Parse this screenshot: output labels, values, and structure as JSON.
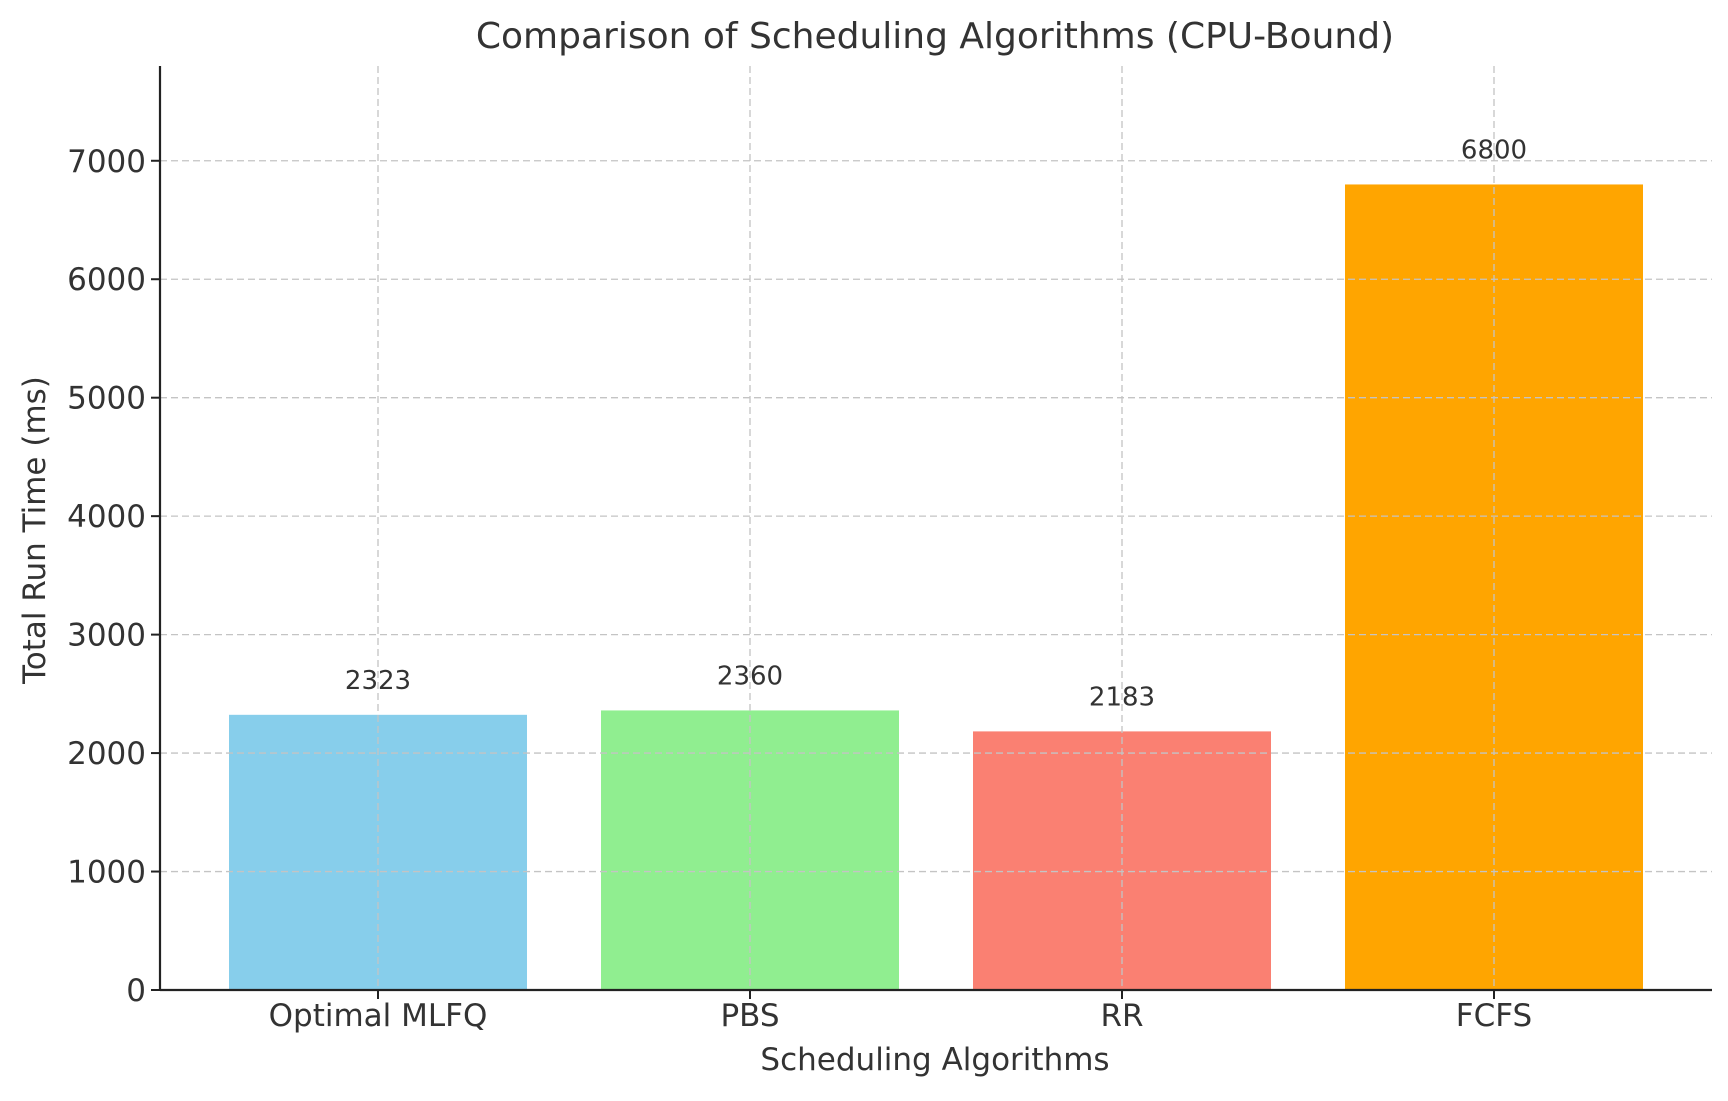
{
  "chart_data": {
    "type": "bar",
    "title": "Comparison of Scheduling Algorithms (CPU-Bound)",
    "xlabel": "Scheduling Algorithms",
    "ylabel": "Total Run Time (ms)",
    "categories": [
      "Optimal MLFQ",
      "PBS",
      "RR",
      "FCFS"
    ],
    "values": [
      2323,
      2360,
      2183,
      6800
    ],
    "value_labels": [
      "2323",
      "2360",
      "2183",
      "6800"
    ],
    "colors": [
      "#87CEEB",
      "#90EE90",
      "#FA8072",
      "#FFA500"
    ],
    "ylim": [
      0,
      7800
    ],
    "yticks": [
      0,
      1000,
      2000,
      3000,
      4000,
      5000,
      6000,
      7000
    ],
    "ytick_labels": [
      "0",
      "1000",
      "2000",
      "3000",
      "4000",
      "5000",
      "6000",
      "7000"
    ],
    "grid": true,
    "legend": "none"
  }
}
